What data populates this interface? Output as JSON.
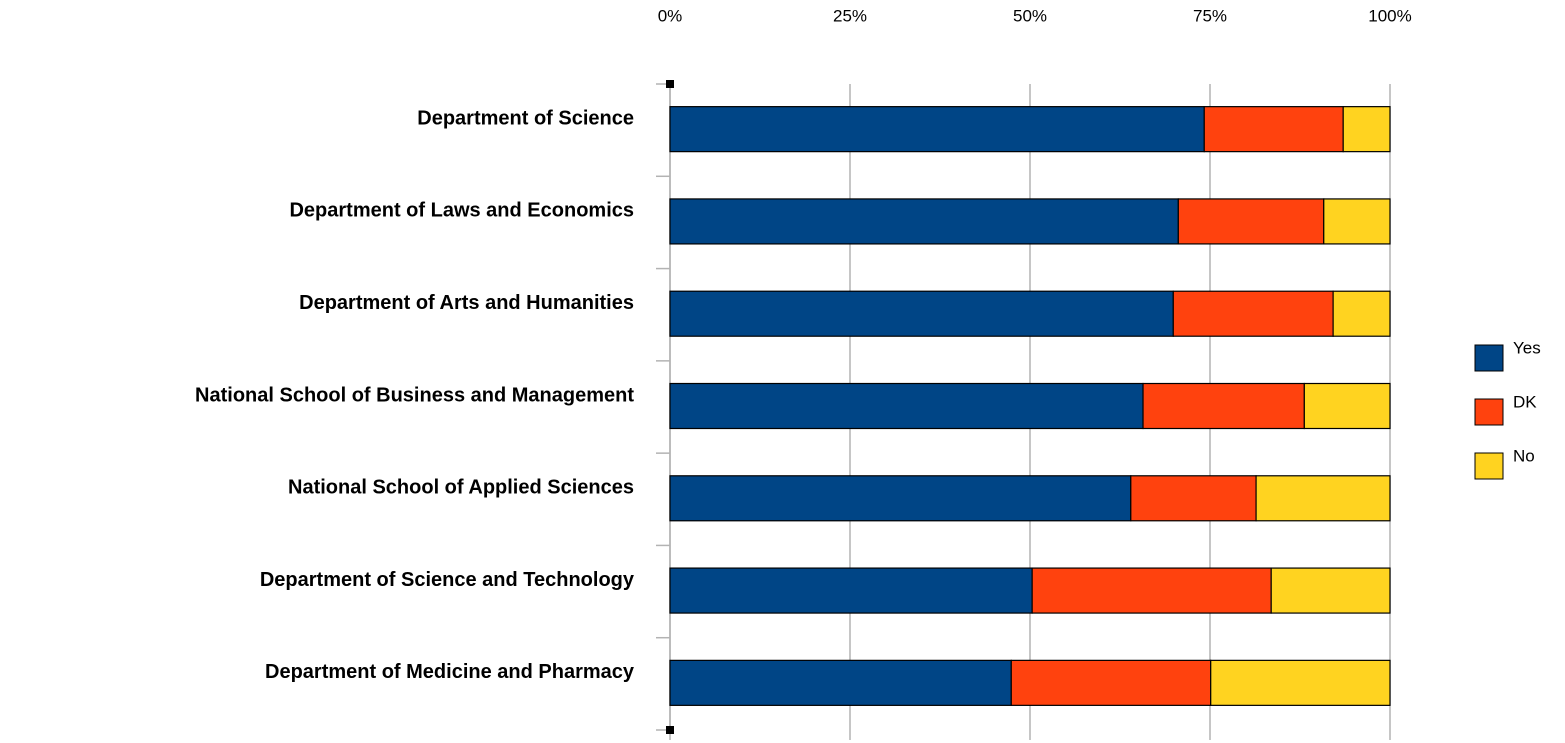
{
  "chart_data": {
    "type": "stacked_barh",
    "categories": [
      "Department of Science",
      "Department of Laws and Economics",
      "Department of Arts and Humanities",
      "National School of Business and Management",
      "National School of Applied Sciences",
      "Department of Science and Technology",
      "Department of Medicine and Pharmacy"
    ],
    "series": [
      {
        "name": "Yes",
        "color": "#004586",
        "values": [
          74.2,
          70.6,
          69.9,
          65.7,
          64.0,
          50.3,
          47.4
        ]
      },
      {
        "name": "DK",
        "color": "#ff420e",
        "values": [
          19.3,
          20.2,
          22.2,
          22.4,
          17.4,
          33.2,
          27.7
        ]
      },
      {
        "name": "No",
        "color": "#ffd320",
        "values": [
          6.5,
          9.2,
          7.9,
          11.9,
          18.6,
          16.5,
          24.9
        ]
      }
    ],
    "xlim": [
      0,
      100
    ],
    "xticks": [
      {
        "value": 0,
        "label": "0%"
      },
      {
        "value": 25,
        "label": "25%"
      },
      {
        "value": 50,
        "label": "50%"
      },
      {
        "value": 75,
        "label": "75%"
      },
      {
        "value": 100,
        "label": "100%"
      }
    ],
    "grid": true,
    "legend": "right"
  }
}
